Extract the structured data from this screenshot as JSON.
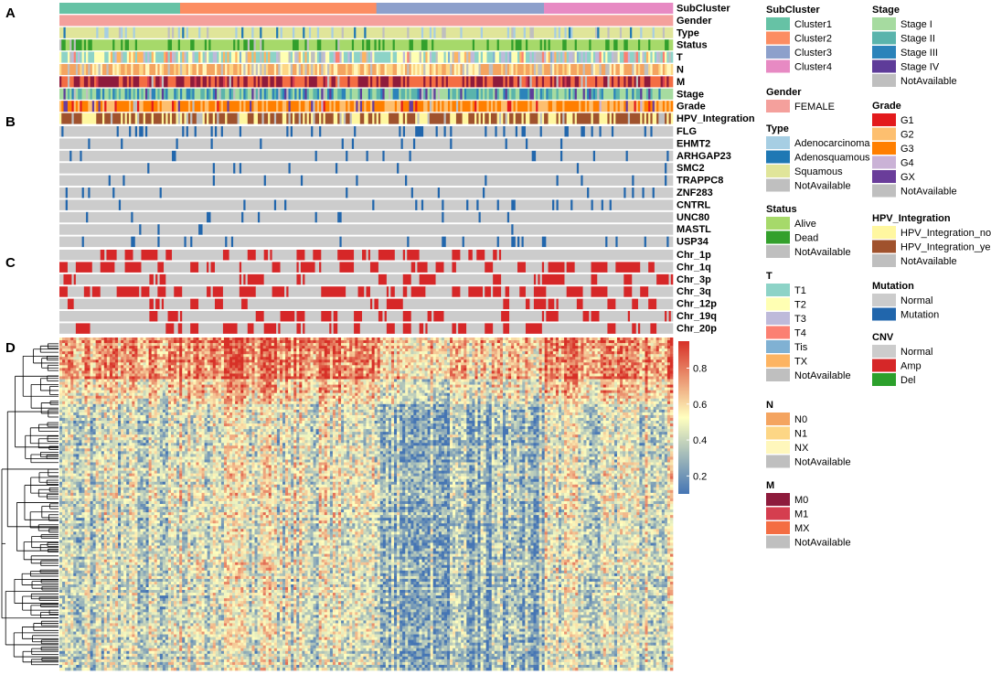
{
  "chart_data": {
    "type": "heatmap",
    "title": "",
    "panels": [
      "A",
      "B",
      "C",
      "D"
    ],
    "annotation_tracks": {
      "clinical": [
        "SubCluster",
        "Gender",
        "Type",
        "Status",
        "T",
        "N",
        "M",
        "Stage",
        "Grade",
        "HPV_Integration"
      ],
      "mutation_genes": [
        "FLG",
        "EHMT2",
        "ARHGAP23",
        "SMC2",
        "TRAPPC8",
        "ZNF283",
        "CNTRL",
        "UNC80",
        "MASTL",
        "USP34"
      ],
      "cnv_regions": [
        "Chr_1p",
        "Chr_1q",
        "Chr_3p",
        "Chr_3q",
        "Chr_12p",
        "Chr_19q",
        "Chr_20p"
      ]
    },
    "subcluster_proportions": [
      {
        "name": "Cluster1",
        "fraction": 0.195
      },
      {
        "name": "Cluster2",
        "fraction": 0.32
      },
      {
        "name": "Cluster3",
        "fraction": 0.275
      },
      {
        "name": "Cluster4",
        "fraction": 0.21
      }
    ],
    "colorbar": {
      "ticks": [
        "0.8",
        "0.6",
        "0.4",
        "0.2"
      ],
      "range": [
        0.1,
        0.95
      ],
      "low_color": "#4575b4",
      "mid_color": "#ffffbf",
      "high_color": "#d73027"
    },
    "legends": [
      {
        "title": "SubCluster",
        "items": [
          {
            "label": "Cluster1",
            "color": "#66c2a5"
          },
          {
            "label": "Cluster2",
            "color": "#fc8d62"
          },
          {
            "label": "Cluster3",
            "color": "#8da0cb"
          },
          {
            "label": "Cluster4",
            "color": "#e78ac3"
          }
        ]
      },
      {
        "title": "Gender",
        "items": [
          {
            "label": "FEMALE",
            "color": "#f4a09c"
          }
        ]
      },
      {
        "title": "Type",
        "items": [
          {
            "label": "Adenocarcinoma",
            "color": "#a6cee3"
          },
          {
            "label": "Adenosquamous",
            "color": "#1f78b4"
          },
          {
            "label": "Squamous",
            "color": "#e0e59a"
          },
          {
            "label": "NotAvailable",
            "color": "#bfbfbf"
          }
        ]
      },
      {
        "title": "Status",
        "items": [
          {
            "label": "Alive",
            "color": "#a6d96a"
          },
          {
            "label": "Dead",
            "color": "#33a02c"
          },
          {
            "label": "NotAvailable",
            "color": "#bfbfbf"
          }
        ]
      },
      {
        "title": "T",
        "items": [
          {
            "label": "T1",
            "color": "#8dd3c7"
          },
          {
            "label": "T2",
            "color": "#ffffb3"
          },
          {
            "label": "T3",
            "color": "#bebada"
          },
          {
            "label": "T4",
            "color": "#fb8072"
          },
          {
            "label": "Tis",
            "color": "#80b1d3"
          },
          {
            "label": "TX",
            "color": "#fdb462"
          },
          {
            "label": "NotAvailable",
            "color": "#bfbfbf"
          }
        ]
      },
      {
        "title": "N",
        "items": [
          {
            "label": "N0",
            "color": "#f4a460"
          },
          {
            "label": "N1",
            "color": "#fdd685"
          },
          {
            "label": "NX",
            "color": "#fff7bc"
          },
          {
            "label": "NotAvailable",
            "color": "#bfbfbf"
          }
        ]
      },
      {
        "title": "M",
        "items": [
          {
            "label": "M0",
            "color": "#8e1b3c"
          },
          {
            "label": "M1",
            "color": "#d53e4f"
          },
          {
            "label": "MX",
            "color": "#f46d43"
          },
          {
            "label": "NotAvailable",
            "color": "#bfbfbf"
          }
        ]
      },
      {
        "title": "Stage",
        "items": [
          {
            "label": "Stage I",
            "color": "#a6dba0"
          },
          {
            "label": "Stage II",
            "color": "#5ab4ac"
          },
          {
            "label": "Stage III",
            "color": "#2b83ba"
          },
          {
            "label": "Stage IV",
            "color": "#5e3c99"
          },
          {
            "label": "NotAvailable",
            "color": "#bfbfbf"
          }
        ]
      },
      {
        "title": "Grade",
        "items": [
          {
            "label": "G1",
            "color": "#e31a1c"
          },
          {
            "label": "G2",
            "color": "#fdbf6f"
          },
          {
            "label": "G3",
            "color": "#ff7f00"
          },
          {
            "label": "G4",
            "color": "#cab2d6"
          },
          {
            "label": "GX",
            "color": "#6a3d9a"
          },
          {
            "label": "NotAvailable",
            "color": "#bfbfbf"
          }
        ]
      },
      {
        "title": "HPV_Integration",
        "items": [
          {
            "label": "HPV_Integration_no",
            "color": "#fff7a0"
          },
          {
            "label": "HPV_Integration_yes",
            "color": "#a0522d"
          },
          {
            "label": "NotAvailable",
            "color": "#bfbfbf"
          }
        ]
      },
      {
        "title": "Mutation",
        "items": [
          {
            "label": "Normal",
            "color": "#cccccc"
          },
          {
            "label": "Mutation",
            "color": "#2166ac"
          }
        ]
      },
      {
        "title": "CNV",
        "items": [
          {
            "label": "Normal",
            "color": "#cccccc"
          },
          {
            "label": "Amp",
            "color": "#d62728"
          },
          {
            "label": "Del",
            "color": "#2ca02c"
          }
        ]
      }
    ]
  }
}
